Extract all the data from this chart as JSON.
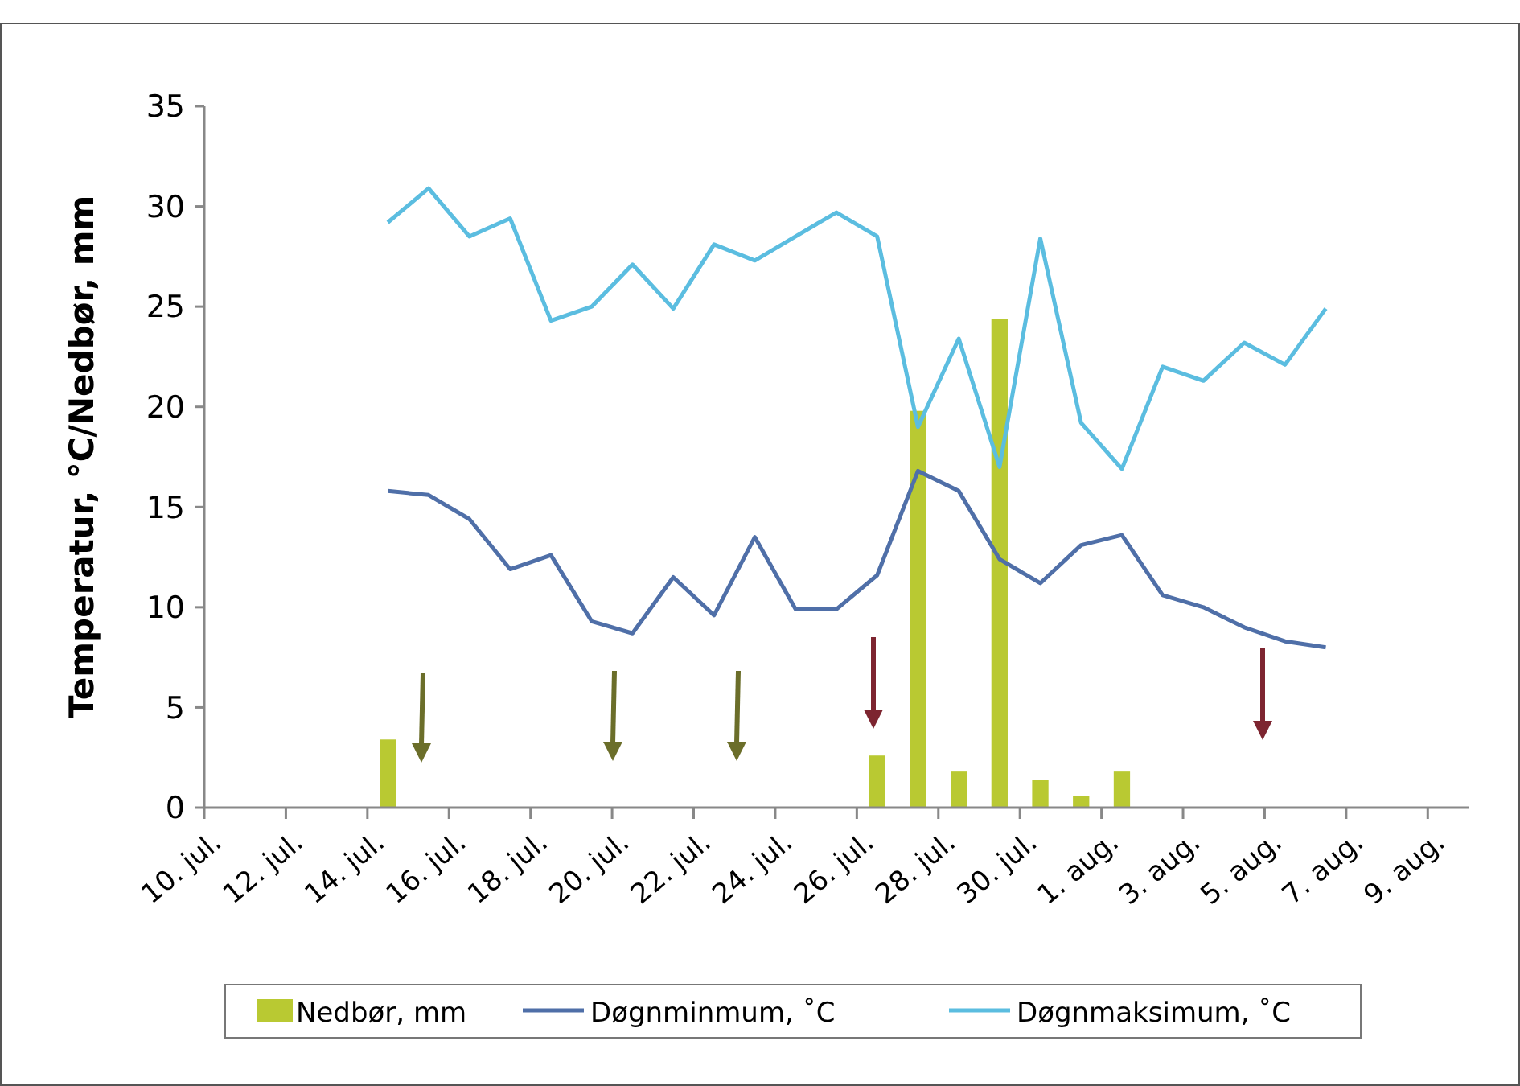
{
  "chart_data": {
    "type": "line",
    "ylabel": "Temperatur, °C/Nedbør, mm",
    "x": [
      "--07-14T12:00",
      "--07-15T12:00",
      "--07-16T12:00",
      "--07-17T12:00",
      "--07-18T12:00",
      "--07-19T12:00",
      "--07-20T12:00",
      "--07-21T12:00",
      "--07-22T12:00",
      "--07-23T12:00",
      "--07-24T12:00",
      "--07-25T12:00",
      "--07-26T12:00",
      "--07-27T12:00",
      "--07-28T12:00",
      "--07-29T12:00",
      "--07-30T12:00",
      "--07-31T12:00",
      "--08-01T12:00",
      "--08-02T12:00",
      "--08-03T12:00",
      "--08-04T12:00",
      "--08-05T12:00",
      "--08-06T12:00"
    ],
    "series": [
      {
        "name": "Nedbør, mm",
        "type": "bar",
        "color": "#b9c932",
        "values": [
          3.4,
          null,
          null,
          null,
          null,
          null,
          null,
          null,
          null,
          null,
          null,
          null,
          2.6,
          19.8,
          1.8,
          24.4,
          1.4,
          0.6,
          1.8,
          null,
          null,
          null,
          null,
          null
        ]
      },
      {
        "name": "Døgnminmum, ˚C",
        "color": "#4f6fa8",
        "values": [
          15.8,
          15.6,
          14.4,
          11.9,
          12.6,
          9.3,
          8.7,
          11.5,
          9.6,
          13.5,
          9.9,
          9.9,
          11.6,
          16.8,
          15.8,
          12.4,
          11.2,
          13.1,
          13.6,
          10.6,
          10.0,
          9.0,
          8.3,
          8.0
        ]
      },
      {
        "name": "Døgnmaksimum, ˚C",
        "color": "#5bbde0",
        "values": [
          29.2,
          30.9,
          28.5,
          29.4,
          24.3,
          25.0,
          27.1,
          24.9,
          28.1,
          27.3,
          28.5,
          29.7,
          28.5,
          19.0,
          23.4,
          17.0,
          28.4,
          19.2,
          16.9,
          22.0,
          21.3,
          23.2,
          22.1,
          24.9
        ]
      }
    ],
    "xlim": [
      "--07-10",
      "--08-10"
    ],
    "xticks": [
      {
        "value": "--07-10",
        "label": "10. jul."
      },
      {
        "value": "--07-12",
        "label": "12. jul."
      },
      {
        "value": "--07-14",
        "label": "14. jul."
      },
      {
        "value": "--07-16",
        "label": "16. jul."
      },
      {
        "value": "--07-18",
        "label": "18. jul."
      },
      {
        "value": "--07-20",
        "label": "20. jul."
      },
      {
        "value": "--07-22",
        "label": "22. jul."
      },
      {
        "value": "--07-24",
        "label": "24. jul."
      },
      {
        "value": "--07-26",
        "label": "26. jul."
      },
      {
        "value": "--07-28",
        "label": "28. jul."
      },
      {
        "value": "--07-30",
        "label": "30. jul."
      },
      {
        "value": "--08-01",
        "label": "1. aug."
      },
      {
        "value": "--08-03",
        "label": "3. aug."
      },
      {
        "value": "--08-05",
        "label": "5. aug."
      },
      {
        "value": "--08-07",
        "label": "7. aug."
      },
      {
        "value": "--08-09",
        "label": "9. aug."
      }
    ],
    "ylim": [
      0,
      35
    ],
    "yticks": [
      0,
      5,
      10,
      15,
      20,
      25,
      30,
      35
    ],
    "grid": false,
    "legend": "bottom"
  }
}
